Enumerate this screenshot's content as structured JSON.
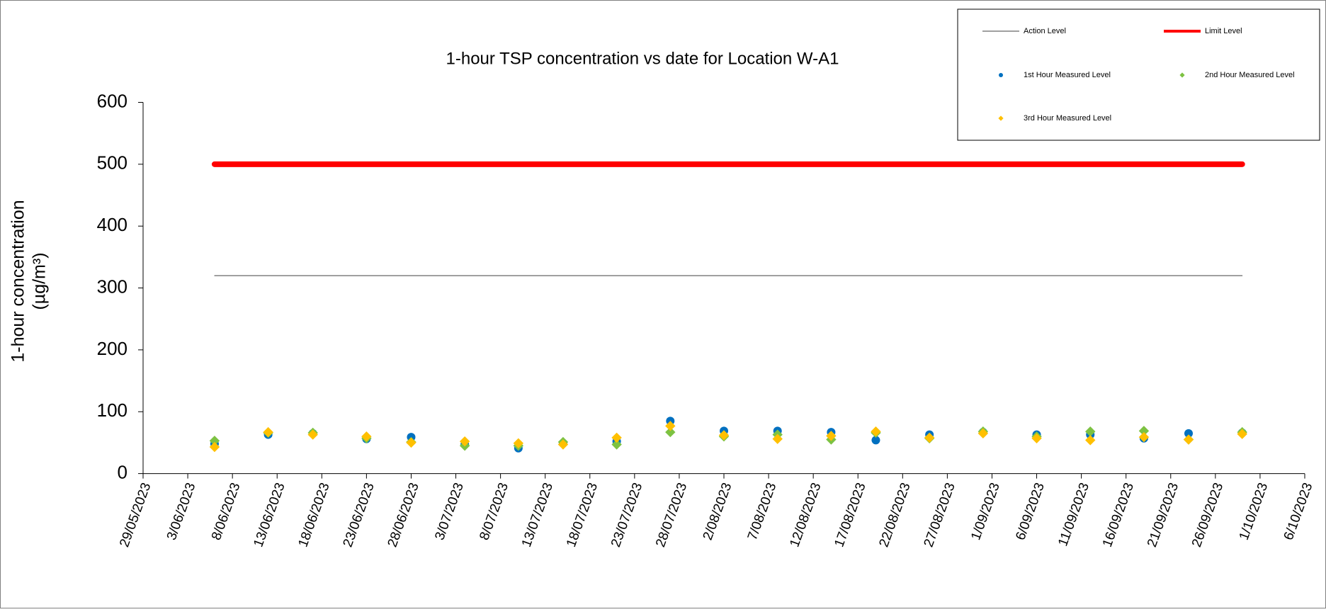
{
  "chart_data": {
    "type": "scatter",
    "title": "1-hour TSP concentration vs date for Location W-A1",
    "y_label": [
      "1-hour concentration",
      "(µg/m³)"
    ],
    "xlim": [
      "29/05/2023",
      "6/10/2023"
    ],
    "xticks": [
      "29/05/2023",
      "3/06/2023",
      "8/06/2023",
      "13/06/2023",
      "18/06/2023",
      "23/06/2023",
      "28/06/2023",
      "3/07/2023",
      "8/07/2023",
      "13/07/2023",
      "18/07/2023",
      "23/07/2023",
      "28/07/2023",
      "2/08/2023",
      "7/08/2023",
      "12/08/2023",
      "17/08/2023",
      "22/08/2023",
      "27/08/2023",
      "1/09/2023",
      "6/09/2023",
      "11/09/2023",
      "16/09/2023",
      "21/09/2023",
      "26/09/2023",
      "1/10/2023",
      "6/10/2023"
    ],
    "ylim": [
      0,
      600
    ],
    "yticks": [
      0,
      100,
      200,
      300,
      400,
      500,
      600
    ],
    "series": [
      {
        "name": "Action Level",
        "type": "line",
        "color": "#404040",
        "width": 1,
        "x": [
          "6/06/2023",
          "29/09/2023"
        ],
        "values": [
          320,
          320
        ]
      },
      {
        "name": "Limit Level",
        "type": "line",
        "color": "#ff0000",
        "width": 8,
        "x": [
          "6/06/2023",
          "29/09/2023"
        ],
        "values": [
          500,
          500
        ]
      },
      {
        "name": "1st Hour Measured Level",
        "type": "scatter",
        "marker": "circle",
        "color": "#0070c0",
        "x": [
          "6/06/2023",
          "12/06/2023",
          "17/06/2023",
          "23/06/2023",
          "28/06/2023",
          "4/07/2023",
          "10/07/2023",
          "15/07/2023",
          "21/07/2023",
          "27/07/2023",
          "2/08/2023",
          "8/08/2023",
          "14/08/2023",
          "19/08/2023",
          "25/08/2023",
          "31/08/2023",
          "6/09/2023",
          "12/09/2023",
          "18/09/2023",
          "23/09/2023",
          "29/09/2023"
        ],
        "values": [
          48,
          63,
          65,
          56,
          59,
          47,
          41,
          49,
          52,
          85,
          69,
          69,
          67,
          54,
          63,
          67,
          63,
          63,
          57,
          65,
          66
        ]
      },
      {
        "name": "2nd Hour Measured Level",
        "type": "scatter",
        "marker": "diamond",
        "color": "#7dc242",
        "x": [
          "6/06/2023",
          "12/06/2023",
          "17/06/2023",
          "23/06/2023",
          "28/06/2023",
          "4/07/2023",
          "10/07/2023",
          "15/07/2023",
          "21/07/2023",
          "27/07/2023",
          "2/08/2023",
          "8/08/2023",
          "14/08/2023",
          "19/08/2023",
          "25/08/2023",
          "31/08/2023",
          "6/09/2023",
          "12/09/2023",
          "18/09/2023",
          "23/09/2023",
          "29/09/2023"
        ],
        "values": [
          53,
          66,
          66,
          57,
          51,
          45,
          45,
          51,
          47,
          67,
          60,
          63,
          55,
          66,
          57,
          68,
          60,
          68,
          69,
          55,
          67
        ]
      },
      {
        "name": "3rd Hour Measured Level",
        "type": "scatter",
        "marker": "diamond",
        "color": "#ffc000",
        "x": [
          "6/06/2023",
          "12/06/2023",
          "17/06/2023",
          "23/06/2023",
          "28/06/2023",
          "4/07/2023",
          "10/07/2023",
          "15/07/2023",
          "21/07/2023",
          "27/07/2023",
          "2/08/2023",
          "8/08/2023",
          "14/08/2023",
          "19/08/2023",
          "25/08/2023",
          "31/08/2023",
          "6/09/2023",
          "12/09/2023",
          "18/09/2023",
          "23/09/2023",
          "29/09/2023"
        ],
        "values": [
          43,
          67,
          63,
          60,
          50,
          52,
          49,
          47,
          58,
          77,
          62,
          56,
          61,
          68,
          58,
          65,
          57,
          54,
          59,
          55,
          64
        ]
      }
    ],
    "legend": "upper right"
  }
}
